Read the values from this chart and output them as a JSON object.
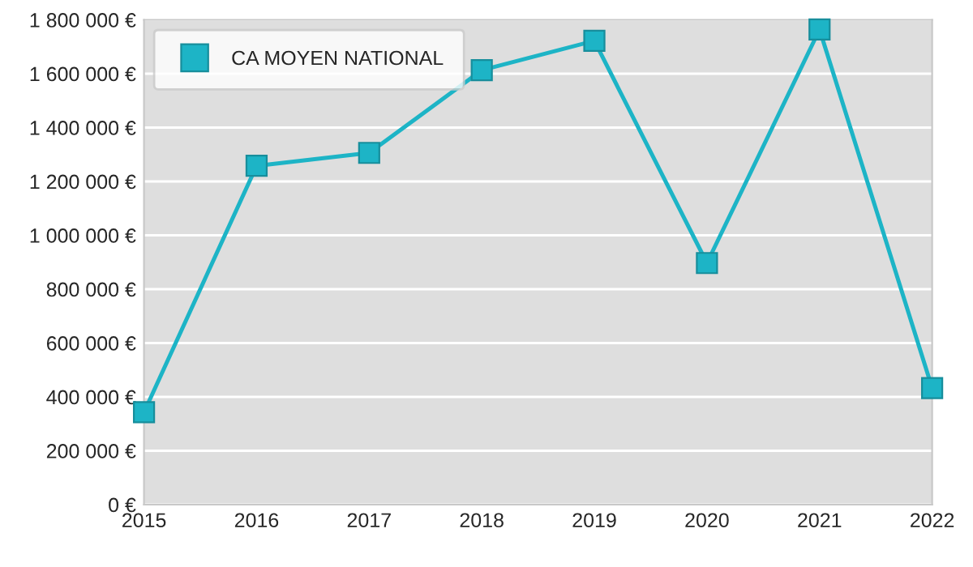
{
  "chart_data": {
    "type": "line",
    "x": [
      2015,
      2016,
      2017,
      2018,
      2019,
      2020,
      2021,
      2022
    ],
    "series": [
      {
        "name": "CA MOYEN NATIONAL",
        "color": "#1db4c6",
        "values": [
          343000,
          1258000,
          1306000,
          1613000,
          1722000,
          897000,
          1764000,
          433000
        ]
      }
    ],
    "xlim": [
      2015,
      2022
    ],
    "xticks": [
      2015,
      2016,
      2017,
      2018,
      2019,
      2020,
      2021,
      2022
    ],
    "ylim": [
      0,
      1800000
    ],
    "yticks": [
      {
        "value": 0,
        "label": "0 €"
      },
      {
        "value": 200000,
        "label": "200 000 €"
      },
      {
        "value": 400000,
        "label": "400 000 €"
      },
      {
        "value": 600000,
        "label": "600 000 €"
      },
      {
        "value": 800000,
        "label": "800 000 €"
      },
      {
        "value": 1000000,
        "label": "1 000 000 €"
      },
      {
        "value": 1200000,
        "label": "1 200 000 €"
      },
      {
        "value": 1400000,
        "label": "1 400 000 €"
      },
      {
        "value": 1600000,
        "label": "1 600 000 €"
      },
      {
        "value": 1800000,
        "label": "1 800 000 €"
      }
    ],
    "grid": "y",
    "legend": "top left",
    "marker": "square",
    "line_style": "solid"
  }
}
